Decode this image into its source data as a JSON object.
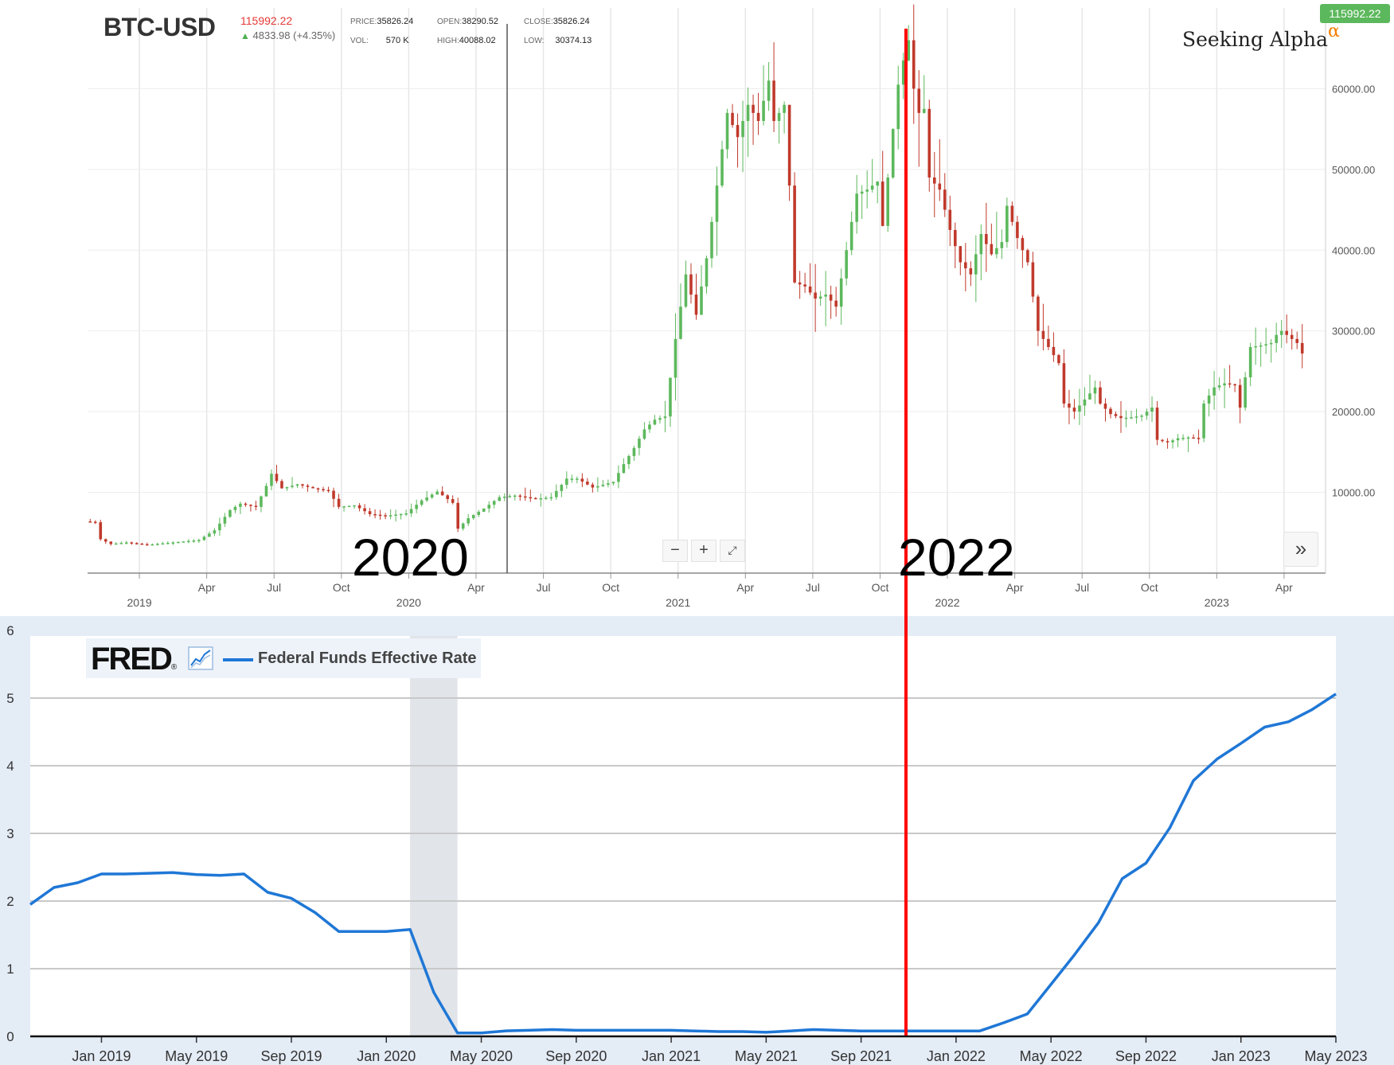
{
  "btc": {
    "symbol": "BTC-USD",
    "last": "115992.22",
    "change": "4833.98 (+4.35%)",
    "change_arrow": "up-arrow-icon",
    "price_badge": "115992.22",
    "logo": "Seeking Alpha",
    "logo_alpha": "α",
    "ohlc": {
      "price_label": "PRICE:",
      "price": "35826.24",
      "open_label": "OPEN:",
      "open": "38290.52",
      "close_label": "CLOSE:",
      "close": "35826.24",
      "vol_label": "VOL:",
      "vol": "570 K",
      "high_label": "HIGH:",
      "high": "40088.02",
      "low_label": "LOW:",
      "low": "30374.13"
    },
    "controls": {
      "zoom_out": "−",
      "zoom_in": "+",
      "reset": "⤢",
      "scroll_forward": "»"
    },
    "year_annotations": [
      "2020",
      "2022"
    ],
    "colors": {
      "up": "#5cb85c",
      "down": "#c0392b",
      "badge": "#5cb85c",
      "marker": "#ff0000"
    }
  },
  "fred": {
    "logo": "FRED",
    "logo_mark": "®",
    "series_name": "Federal Funds Effective Rate",
    "series_color": "#1f77d6",
    "recession_shade": "#e1e4e8"
  },
  "chart_data": [
    {
      "type": "candlestick",
      "title": "BTC-USD",
      "x_unit": "weeks since 2018-10-22",
      "x_ticks": [
        {
          "x": 10,
          "label": "2019",
          "major": true
        },
        {
          "x": 23,
          "label": "Apr",
          "major": false
        },
        {
          "x": 36,
          "label": "Jul",
          "major": false
        },
        {
          "x": 49,
          "label": "Oct",
          "major": false
        },
        {
          "x": 62,
          "label": "2020",
          "major": true
        },
        {
          "x": 75,
          "label": "Apr",
          "major": false
        },
        {
          "x": 88,
          "label": "Jul",
          "major": false
        },
        {
          "x": 101,
          "label": "Oct",
          "major": false
        },
        {
          "x": 114,
          "label": "2021",
          "major": true
        },
        {
          "x": 127,
          "label": "Apr",
          "major": false
        },
        {
          "x": 140,
          "label": "Jul",
          "major": false
        },
        {
          "x": 153,
          "label": "Oct",
          "major": false
        },
        {
          "x": 166,
          "label": "2022",
          "major": true
        },
        {
          "x": 179,
          "label": "Apr",
          "major": false
        },
        {
          "x": 192,
          "label": "Jul",
          "major": false
        },
        {
          "x": 205,
          "label": "Oct",
          "major": false
        },
        {
          "x": 218,
          "label": "2023",
          "major": true
        },
        {
          "x": 231,
          "label": "Apr",
          "major": false
        }
      ],
      "y_ticks": [
        "10000.00",
        "20000.00",
        "30000.00",
        "40000.00",
        "50000.00",
        "60000.00"
      ],
      "y_tick_values": [
        10000,
        20000,
        30000,
        40000,
        50000,
        60000
      ],
      "ylim": [
        0,
        70000
      ],
      "xlim": [
        0,
        239
      ],
      "cursor_x": 81,
      "red_marker_x": 158,
      "anchors": [
        [
          0,
          6400
        ],
        [
          2,
          6300
        ],
        [
          3,
          4200
        ],
        [
          5,
          3600
        ],
        [
          8,
          3800
        ],
        [
          12,
          3500
        ],
        [
          17,
          3800
        ],
        [
          22,
          4100
        ],
        [
          25,
          5300
        ],
        [
          28,
          7800
        ],
        [
          30,
          8600
        ],
        [
          33,
          8200
        ],
        [
          35,
          10800
        ],
        [
          36,
          12300
        ],
        [
          38,
          10500
        ],
        [
          41,
          11000
        ],
        [
          44,
          10500
        ],
        [
          47,
          10200
        ],
        [
          49,
          8200
        ],
        [
          52,
          8400
        ],
        [
          55,
          7300
        ],
        [
          58,
          7100
        ],
        [
          62,
          7400
        ],
        [
          65,
          9000
        ],
        [
          68,
          10100
        ],
        [
          71,
          8700
        ],
        [
          72,
          5500
        ],
        [
          74,
          6800
        ],
        [
          77,
          8000
        ],
        [
          80,
          9400
        ],
        [
          83,
          9600
        ],
        [
          87,
          9200
        ],
        [
          90,
          9400
        ],
        [
          93,
          11700
        ],
        [
          95,
          11700
        ],
        [
          98,
          10600
        ],
        [
          102,
          11300
        ],
        [
          104,
          13500
        ],
        [
          106,
          15500
        ],
        [
          108,
          17800
        ],
        [
          110,
          19000
        ],
        [
          112,
          19400
        ],
        [
          114,
          29000
        ],
        [
          116,
          37000
        ],
        [
          118,
          32000
        ],
        [
          120,
          39000
        ],
        [
          122,
          48000
        ],
        [
          124,
          57000
        ],
        [
          126,
          54000
        ],
        [
          128,
          58000
        ],
        [
          130,
          56000
        ],
        [
          132,
          61000
        ],
        [
          133,
          56000
        ],
        [
          135,
          58000
        ],
        [
          136,
          48000
        ],
        [
          137,
          36000
        ],
        [
          139,
          35500
        ],
        [
          141,
          34000
        ],
        [
          143,
          34500
        ],
        [
          145,
          33000
        ],
        [
          147,
          40000
        ],
        [
          149,
          47000
        ],
        [
          151,
          47500
        ],
        [
          153,
          48500
        ],
        [
          154,
          43000
        ],
        [
          156,
          55000
        ],
        [
          157,
          60500
        ],
        [
          158,
          63500
        ],
        [
          159,
          66000
        ],
        [
          160,
          60000
        ],
        [
          161,
          57000
        ],
        [
          162,
          57500
        ],
        [
          163,
          49000
        ],
        [
          165,
          47500
        ],
        [
          167,
          42500
        ],
        [
          169,
          38500
        ],
        [
          171,
          37000
        ],
        [
          173,
          42000
        ],
        [
          175,
          39500
        ],
        [
          177,
          41000
        ],
        [
          178,
          45500
        ],
        [
          180,
          41500
        ],
        [
          182,
          38500
        ],
        [
          184,
          30000
        ],
        [
          186,
          28000
        ],
        [
          188,
          26000
        ],
        [
          189,
          21000
        ],
        [
          191,
          20000
        ],
        [
          193,
          21500
        ],
        [
          195,
          23000
        ],
        [
          196,
          21000
        ],
        [
          198,
          19700
        ],
        [
          200,
          19200
        ],
        [
          202,
          19300
        ],
        [
          204,
          19500
        ],
        [
          206,
          20500
        ],
        [
          207,
          16500
        ],
        [
          209,
          16200
        ],
        [
          211,
          16700
        ],
        [
          213,
          16800
        ],
        [
          215,
          16700
        ],
        [
          216,
          21000
        ],
        [
          218,
          23000
        ],
        [
          220,
          23500
        ],
        [
          222,
          23300
        ],
        [
          223,
          20500
        ],
        [
          225,
          28000
        ],
        [
          227,
          28200
        ],
        [
          229,
          28500
        ],
        [
          230,
          29500
        ],
        [
          231,
          30000
        ],
        [
          233,
          29000
        ],
        [
          234,
          28500
        ],
        [
          235,
          27200
        ]
      ]
    },
    {
      "type": "line",
      "series": [
        {
          "name": "Federal Funds Effective Rate",
          "x": [
            "2018-10",
            "2018-11",
            "2018-12",
            "2019-01",
            "2019-02",
            "2019-03",
            "2019-04",
            "2019-05",
            "2019-06",
            "2019-07",
            "2019-08",
            "2019-09",
            "2019-10",
            "2019-11",
            "2019-12",
            "2020-01",
            "2020-02",
            "2020-03",
            "2020-04",
            "2020-05",
            "2020-06",
            "2020-07",
            "2020-08",
            "2020-09",
            "2020-10",
            "2020-11",
            "2020-12",
            "2021-01",
            "2021-02",
            "2021-03",
            "2021-04",
            "2021-05",
            "2021-06",
            "2021-07",
            "2021-08",
            "2021-09",
            "2021-10",
            "2021-11",
            "2021-12",
            "2022-01",
            "2022-02",
            "2022-03",
            "2022-04",
            "2022-05",
            "2022-06",
            "2022-07",
            "2022-08",
            "2022-09",
            "2022-10",
            "2022-11",
            "2022-12",
            "2023-01",
            "2023-02",
            "2023-03",
            "2023-04",
            "2023-05"
          ],
          "values": [
            1.95,
            2.2,
            2.27,
            2.4,
            2.4,
            2.41,
            2.42,
            2.39,
            2.38,
            2.4,
            2.13,
            2.04,
            1.83,
            1.55,
            1.55,
            1.55,
            1.58,
            0.65,
            0.05,
            0.05,
            0.08,
            0.09,
            0.1,
            0.09,
            0.09,
            0.09,
            0.09,
            0.09,
            0.08,
            0.07,
            0.07,
            0.06,
            0.08,
            0.1,
            0.09,
            0.08,
            0.08,
            0.08,
            0.08,
            0.08,
            0.08,
            0.2,
            0.33,
            0.77,
            1.21,
            1.68,
            2.33,
            2.56,
            3.08,
            3.78,
            4.1,
            4.33,
            4.57,
            4.65,
            4.83,
            5.06
          ]
        }
      ],
      "x_tick_labels": [
        "Jan 2019",
        "May 2019",
        "Sep 2019",
        "Jan 2020",
        "May 2020",
        "Sep 2020",
        "Jan 2021",
        "May 2021",
        "Sep 2021",
        "Jan 2022",
        "May 2022",
        "Sep 2022",
        "Jan 2023",
        "May 2023"
      ],
      "y_ticks": [
        0,
        1,
        2,
        3,
        4,
        5,
        6
      ],
      "ylim": [
        0,
        6
      ],
      "recession": [
        "2020-02",
        "2020-04"
      ]
    }
  ]
}
